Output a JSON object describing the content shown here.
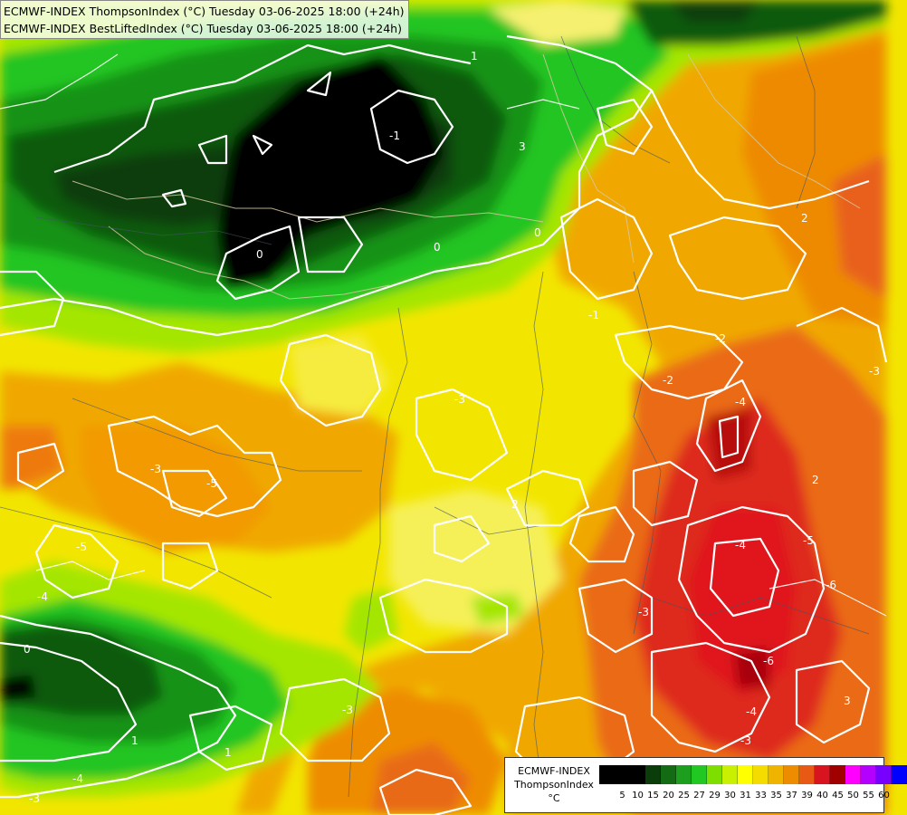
{
  "header": {
    "line1": "ECMWF-INDEX ThompsonIndex (°C) Tuesday 03-06-2025 18:00 (+24h)",
    "line2": "ECMWF-INDEX BestLiftedIndex (°C) Tuesday 03-06-2025 18:00 (+24h)"
  },
  "legend": {
    "model": "ECMWF-INDEX",
    "parameter": "ThompsonIndex",
    "unit": "°C",
    "colors": [
      "#000000",
      "#000000",
      "#000000",
      "#0a3d0a",
      "#136b13",
      "#1e9e1e",
      "#22c822",
      "#7dde00",
      "#c8f000",
      "#ffff00",
      "#f5dc00",
      "#f0b400",
      "#ee8c00",
      "#e85a14",
      "#d8141e",
      "#a00000",
      "#ff00ff",
      "#b400ff",
      "#7800ff",
      "#0000ff"
    ],
    "ticks": [
      "5",
      "10",
      "15",
      "20",
      "25",
      "27",
      "29",
      "30",
      "31",
      "33",
      "35",
      "37",
      "39",
      "40",
      "45",
      "50",
      "55",
      "60"
    ]
  },
  "contour_labels": [
    "1",
    "-1",
    "3",
    "0",
    "0",
    "0",
    "-2",
    "-3",
    "2",
    "-2",
    "2",
    "-4",
    "2",
    "-4",
    "-3",
    "-5",
    "-6",
    "-4",
    "3",
    "-3",
    "-3",
    "-5",
    "-5",
    "-4",
    "-6",
    "-3",
    "0",
    "1",
    "-4",
    "-3",
    "1",
    "-3",
    "-1"
  ]
}
